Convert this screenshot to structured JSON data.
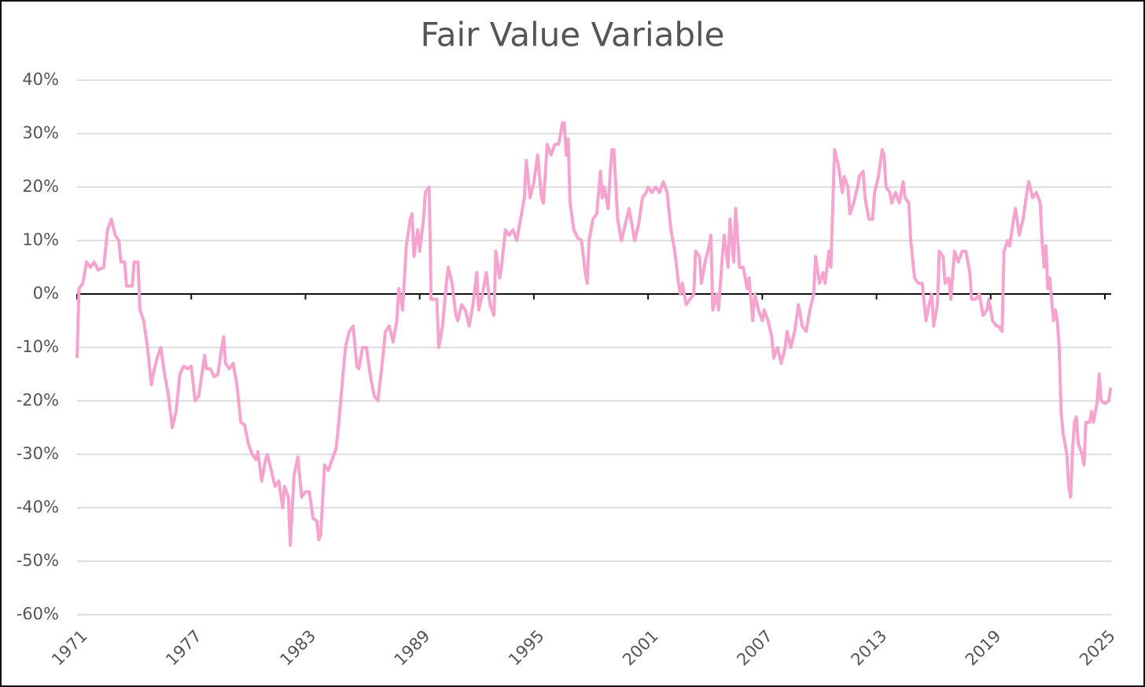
{
  "chart_data": {
    "type": "line",
    "title": "Fair Value Variable",
    "color": "#f6a3cf",
    "grid": true,
    "xlim": [
      1971,
      2025.33
    ],
    "xticks": [
      1971,
      1977,
      1983,
      1989,
      1995,
      2001,
      2007,
      2013,
      2019,
      2025
    ],
    "ylim": [
      -60,
      40
    ],
    "yticks": [
      {
        "value": -60,
        "label": "-60%"
      },
      {
        "value": -50,
        "label": "-50%"
      },
      {
        "value": -40,
        "label": "-40%"
      },
      {
        "value": -30,
        "label": "-30%"
      },
      {
        "value": -20,
        "label": "-20%"
      },
      {
        "value": -10,
        "label": "-10%"
      },
      {
        "value": 0,
        "label": "0%"
      },
      {
        "value": 10,
        "label": "10%"
      },
      {
        "value": 20,
        "label": "20%"
      },
      {
        "value": 30,
        "label": "30%"
      },
      {
        "value": 40,
        "label": "40%"
      }
    ],
    "x": [
      1971.0,
      1971.1,
      1971.3,
      1971.5,
      1971.7,
      1971.9,
      1972.1,
      1972.4,
      1972.6,
      1972.8,
      1973.0,
      1973.2,
      1973.3,
      1973.5,
      1973.6,
      1973.9,
      1974.0,
      1974.2,
      1974.3,
      1974.5,
      1974.7,
      1974.9,
      1975.0,
      1975.2,
      1975.4,
      1975.6,
      1975.8,
      1976.0,
      1976.2,
      1976.4,
      1976.6,
      1976.8,
      1977.0,
      1977.2,
      1977.4,
      1977.6,
      1977.7,
      1977.8,
      1978.0,
      1978.2,
      1978.4,
      1978.6,
      1978.7,
      1978.8,
      1979.0,
      1979.2,
      1979.4,
      1979.6,
      1979.8,
      1980.0,
      1980.2,
      1980.4,
      1980.5,
      1980.7,
      1980.9,
      1981.0,
      1981.2,
      1981.4,
      1981.6,
      1981.8,
      1981.9,
      1982.1,
      1982.2,
      1982.4,
      1982.6,
      1982.8,
      1983.0,
      1983.2,
      1983.4,
      1983.6,
      1983.7,
      1983.8,
      1984.0,
      1984.2,
      1984.4,
      1984.6,
      1984.7,
      1984.9,
      1985.1,
      1985.3,
      1985.5,
      1985.7,
      1985.8,
      1986.0,
      1986.2,
      1986.4,
      1986.6,
      1986.8,
      1987.0,
      1987.2,
      1987.4,
      1987.6,
      1987.8,
      1987.9,
      1988.1,
      1988.3,
      1988.5,
      1988.6,
      1988.7,
      1988.9,
      1989.0,
      1989.2,
      1989.3,
      1989.5,
      1989.6,
      1989.8,
      1989.9,
      1990.0,
      1990.2,
      1990.4,
      1990.5,
      1990.7,
      1990.9,
      1991.0,
      1991.2,
      1991.4,
      1991.6,
      1991.8,
      1992.0,
      1992.1,
      1992.3,
      1992.5,
      1992.7,
      1992.9,
      1993.0,
      1993.2,
      1993.3,
      1993.5,
      1993.7,
      1993.9,
      1994.1,
      1994.3,
      1994.5,
      1994.6,
      1994.8,
      1995.0,
      1995.2,
      1995.4,
      1995.5,
      1995.7,
      1995.9,
      1996.1,
      1996.3,
      1996.5,
      1996.6,
      1996.7,
      1996.8,
      1996.9,
      1997.1,
      1997.3,
      1997.5,
      1997.7,
      1997.8,
      1997.9,
      1998.1,
      1998.3,
      1998.5,
      1998.6,
      1998.7,
      1998.9,
      1999.0,
      1999.1,
      1999.2,
      1999.4,
      1999.6,
      1999.8,
      2000.0,
      2000.1,
      2000.3,
      2000.5,
      2000.7,
      2000.9,
      2001.0,
      2001.2,
      2001.4,
      2001.6,
      2001.8,
      2002.0,
      2002.2,
      2002.4,
      2002.6,
      2002.7,
      2002.8,
      2003.0,
      2003.2,
      2003.4,
      2003.5,
      2003.7,
      2003.8,
      2004.0,
      2004.2,
      2004.3,
      2004.4,
      2004.6,
      2004.7,
      2004.9,
      2005.0,
      2005.2,
      2005.3,
      2005.5,
      2005.6,
      2005.8,
      2006.0,
      2006.2,
      2006.3,
      2006.5,
      2006.6,
      2006.8,
      2007.0,
      2007.1,
      2007.3,
      2007.5,
      2007.6,
      2007.8,
      2008.0,
      2008.2,
      2008.3,
      2008.5,
      2008.7,
      2008.9,
      2009.1,
      2009.3,
      2009.5,
      2009.7,
      2009.8,
      2010.0,
      2010.2,
      2010.3,
      2010.5,
      2010.6,
      2010.8,
      2011.0,
      2011.2,
      2011.3,
      2011.5,
      2011.6,
      2011.8,
      2012.0,
      2012.1,
      2012.3,
      2012.4,
      2012.6,
      2012.8,
      2012.9,
      2013.1,
      2013.3,
      2013.4,
      2013.5,
      2013.7,
      2013.8,
      2014.0,
      2014.2,
      2014.4,
      2014.5,
      2014.7,
      2014.8,
      2015.0,
      2015.2,
      2015.4,
      2015.6,
      2015.7,
      2015.9,
      2016.0,
      2016.2,
      2016.3,
      2016.5,
      2016.6,
      2016.8,
      2016.9,
      2017.1,
      2017.3,
      2017.5,
      2017.7,
      2017.9,
      2018.0,
      2018.2,
      2018.4,
      2018.6,
      2018.8,
      2018.9,
      2019.1,
      2019.3,
      2019.4,
      2019.6,
      2019.7,
      2019.9,
      2020.0,
      2020.2,
      2020.3,
      2020.5,
      2020.7,
      2020.9,
      2021.0,
      2021.2,
      2021.4,
      2021.6,
      2021.7,
      2021.8,
      2021.9,
      2022.0,
      2022.1,
      2022.3,
      2022.4,
      2022.5,
      2022.6,
      2022.7,
      2022.8,
      2023.0,
      2023.1,
      2023.2,
      2023.3,
      2023.4,
      2023.5,
      2023.6,
      2023.8,
      2023.9,
      2024.0,
      2024.2,
      2024.3,
      2024.4,
      2024.6,
      2024.7,
      2024.8,
      2025.0,
      2025.2,
      2025.3
    ],
    "values": [
      -12,
      1,
      2,
      6,
      5,
      6,
      4.5,
      5,
      12,
      14,
      11,
      10,
      6,
      6,
      1.5,
      1.5,
      6,
      6,
      -3,
      -5,
      -10,
      -17,
      -15,
      -12,
      -10,
      -15,
      -19,
      -25,
      -22,
      -15,
      -13.5,
      -14,
      -13.5,
      -20,
      -19,
      -14,
      -11.5,
      -14,
      -14,
      -15.5,
      -15,
      -10,
      -8,
      -13,
      -14,
      -13,
      -17,
      -24,
      -24.5,
      -28,
      -30,
      -31,
      -29.5,
      -35,
      -31,
      -30,
      -33,
      -36,
      -35,
      -40,
      -36,
      -38,
      -47,
      -34,
      -30.5,
      -38,
      -37,
      -37,
      -42,
      -42.5,
      -46,
      -45,
      -32,
      -33,
      -31,
      -29,
      -26,
      -18,
      -10,
      -7,
      -6,
      -13.5,
      -14,
      -10,
      -10,
      -15,
      -19,
      -20,
      -14,
      -7,
      -6,
      -9,
      -5,
      1,
      -3,
      9,
      14,
      15,
      7,
      12,
      8,
      14,
      19,
      20,
      -1,
      -1,
      -1,
      -10,
      -6,
      2,
      5,
      2,
      -4,
      -5,
      -2,
      -3,
      -6,
      -2,
      4,
      -3,
      0,
      4,
      -2,
      -4,
      8,
      3,
      5,
      12,
      11,
      12,
      10,
      14,
      18,
      25,
      18,
      21,
      26,
      18,
      17,
      28,
      26,
      28,
      28,
      32,
      32,
      26,
      29,
      17,
      12,
      10.5,
      10,
      4,
      2,
      10,
      14,
      15,
      23,
      18,
      20,
      16,
      22,
      27,
      27,
      14,
      10,
      13,
      16,
      14,
      10,
      13,
      18,
      19,
      20,
      19,
      20,
      19,
      21,
      19,
      12,
      8,
      2,
      0,
      2,
      -2,
      -1,
      0,
      8,
      7,
      2,
      6,
      9,
      11,
      -3,
      0,
      -3,
      7,
      11,
      5,
      14,
      6,
      16,
      5,
      5,
      1,
      3,
      -5,
      0,
      -3,
      -5,
      -3,
      -5,
      -8,
      -12,
      -10,
      -13,
      -10,
      -7,
      -10,
      -7,
      -2,
      -6,
      -7,
      -3,
      0,
      7,
      2,
      4,
      2,
      8,
      5,
      27,
      24,
      19,
      22,
      20,
      15,
      17,
      20,
      22,
      23,
      18,
      14,
      14,
      19,
      22,
      27,
      26,
      20,
      19,
      17,
      19,
      17,
      21,
      18,
      17,
      10,
      3,
      2,
      2,
      -5,
      -3,
      0,
      -6,
      -2,
      8,
      7,
      2,
      3,
      -1,
      8,
      6,
      8,
      8,
      4,
      -1,
      -1,
      0,
      -4,
      -3,
      -1,
      -5,
      -6,
      -6,
      -7,
      8,
      10,
      9,
      14,
      16,
      11,
      14,
      19,
      21,
      18,
      19,
      17,
      10,
      5,
      9,
      1,
      3,
      -5,
      -3,
      -5,
      -10,
      -22,
      -26,
      -30,
      -36,
      -38,
      -29,
      -24,
      -23,
      -28,
      -30,
      -32,
      -24,
      -24,
      -22,
      -24,
      -20,
      -15,
      -20,
      -20.5,
      -20,
      -17.5
    ]
  }
}
